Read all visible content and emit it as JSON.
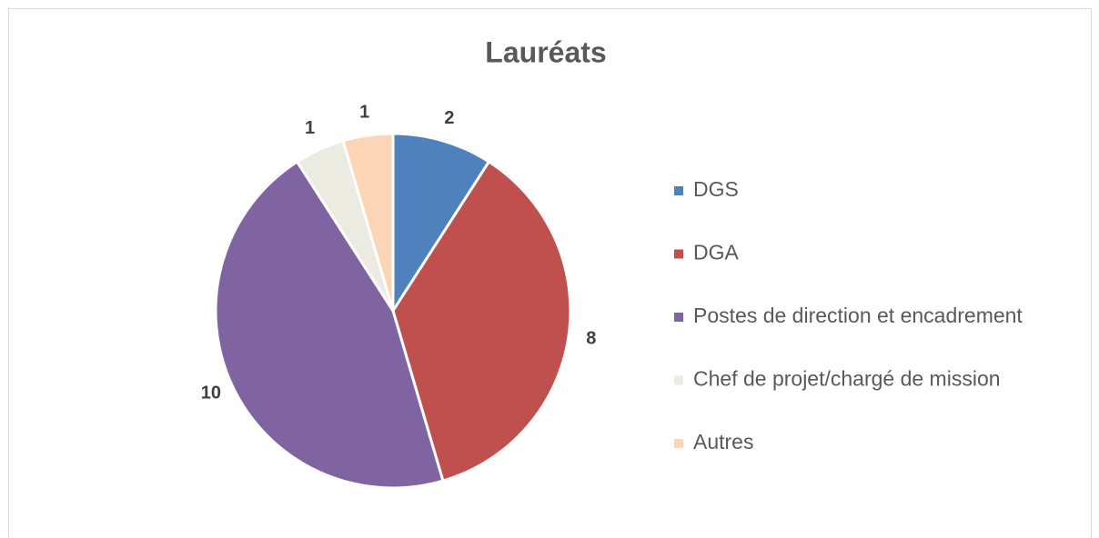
{
  "chart_data": {
    "type": "pie",
    "title": "Lauréats",
    "categories": [
      "DGS",
      "DGA",
      "Postes de direction et encadrement",
      "Chef de projet/chargé de mission",
      "Autres"
    ],
    "values": [
      2,
      8,
      10,
      1,
      1
    ],
    "colors": [
      "#4f81bd",
      "#c0504d",
      "#8064a2",
      "#ecebe1",
      "#fbd5b5"
    ],
    "legend": "right"
  }
}
